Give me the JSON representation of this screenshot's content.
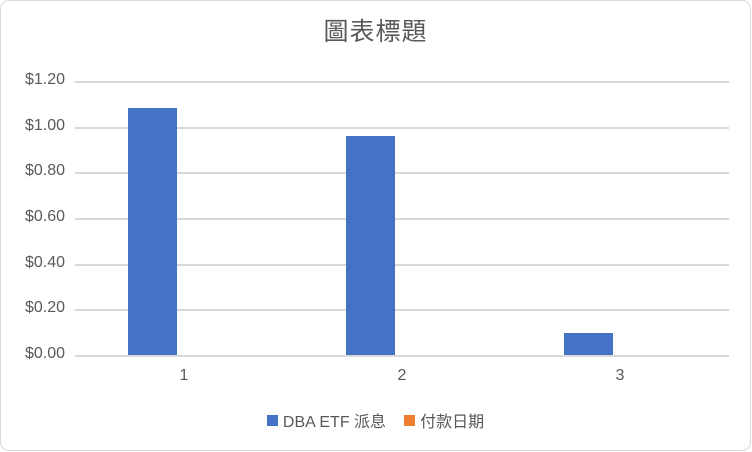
{
  "chart_data": {
    "type": "bar",
    "title": "圖表標題",
    "categories": [
      "1",
      "2",
      "3"
    ],
    "series": [
      {
        "name": "DBA ETF 派息",
        "color": "#4472C4",
        "values": [
          1.08,
          0.96,
          0.095
        ]
      },
      {
        "name": "付款日期",
        "color": "#ED7D31",
        "values": [
          null,
          null,
          null
        ]
      }
    ],
    "ylim": [
      0,
      1.2
    ],
    "y_tick_step": 0.2,
    "y_tick_labels": [
      "$1.20",
      "$1.00",
      "$0.80",
      "$0.60",
      "$0.40",
      "$0.20",
      "$0.00"
    ],
    "xlabel": "",
    "ylabel": "",
    "grid": true,
    "legend_position": "bottom"
  },
  "style": {
    "bar_blue": "#4472C4",
    "legend_orange": "#ED7D31",
    "gridline_color": "#D9D9D9",
    "axis_line_color": "#D9D9D9",
    "frame_border_color": "#D9D9D9",
    "text_color": "#595959",
    "background": "#FFFFFF"
  }
}
